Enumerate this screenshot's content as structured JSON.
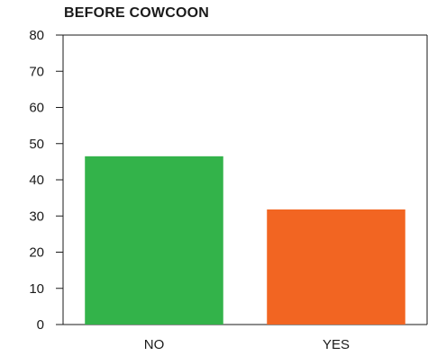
{
  "chart_data": {
    "type": "bar",
    "title": "BEFORE COWCOON",
    "categories": [
      "NO",
      "YES"
    ],
    "values": [
      46.5,
      31.8
    ],
    "colors": [
      "#33b34a",
      "#f26522"
    ],
    "ylim": [
      0,
      80
    ],
    "yticks": [
      0,
      10,
      20,
      30,
      40,
      50,
      60,
      70,
      80
    ],
    "grid": false
  }
}
